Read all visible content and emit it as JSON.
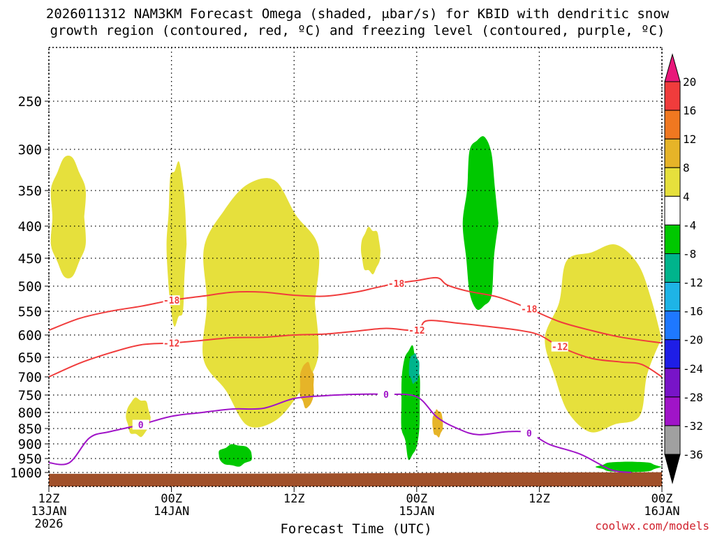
{
  "title_line1": "2026011312 NAM3KM Forecast Omega (shaded, μbar/s) for KBID with dendritic snow",
  "title_line2": "growth region (contoured, red, ºC) and freezing level (contoured, purple, ºC)",
  "credit": "coolwx.com/models",
  "chart_data": {
    "type": "time-height cross section",
    "title": "2026011312 NAM3KM Forecast Omega (shaded, μbar/s) for KBID with dendritic snow growth region (contoured, red, ºC) and freezing level (contoured, purple, ºC)",
    "xlabel": "Forecast Time (UTC)",
    "ylabel": "",
    "x_range_hours": [
      0,
      60
    ],
    "ylim_hpa": [
      1040,
      200
    ],
    "x_ticks": [
      {
        "hour": 0,
        "line1": "12Z",
        "line2": "13JAN",
        "line3": "2026"
      },
      {
        "hour": 12,
        "line1": "00Z",
        "line2": "14JAN",
        "line3": ""
      },
      {
        "hour": 24,
        "line1": "12Z",
        "line2": "",
        "line3": ""
      },
      {
        "hour": 36,
        "line1": "00Z",
        "line2": "15JAN",
        "line3": ""
      },
      {
        "hour": 48,
        "line1": "12Z",
        "line2": "",
        "line3": ""
      },
      {
        "hour": 60,
        "line1": "00Z",
        "line2": "16JAN",
        "line3": ""
      }
    ],
    "y_ticks": [
      250,
      300,
      350,
      400,
      450,
      500,
      550,
      600,
      650,
      700,
      750,
      800,
      850,
      900,
      950,
      1000
    ],
    "colorbar": {
      "labels": [
        "20",
        "16",
        "12",
        "8",
        "4",
        "-4",
        "-8",
        "-12",
        "-16",
        "-20",
        "-24",
        "-28",
        "-32",
        "-36"
      ],
      "colors": [
        "#e8187a",
        "#f03c3c",
        "#f07820",
        "#e6b428",
        "#e6e03c",
        "#ffffff",
        "#00c800",
        "#00b48c",
        "#1eb4e6",
        "#1e78ff",
        "#1e1ee6",
        "#7814c8",
        "#a014c8",
        "#a0a0a0",
        "#000000"
      ]
    },
    "omega_regions": [
      {
        "value_range": "4 to 8",
        "color": "#e6e03c",
        "hour_range": [
          0,
          3.8
        ],
        "hpa_range": [
          305,
          490
        ]
      },
      {
        "value_range": "4 to 8",
        "color": "#e6e03c",
        "hour_range": [
          7.5,
          10
        ],
        "hpa_range": [
          755,
          880
        ]
      },
      {
        "value_range": "4 to 8",
        "color": "#e6e03c",
        "hour_range": [
          11.5,
          13.5
        ],
        "hpa_range": [
          310,
          590
        ]
      },
      {
        "value_range": "4 to 8",
        "color": "#e6e03c",
        "hour_range": [
          14.5,
          27
        ],
        "hpa_range": [
          330,
          860
        ]
      },
      {
        "value_range": "4 to 8",
        "color": "#e6e03c",
        "hour_range": [
          30.5,
          32.5
        ],
        "hpa_range": [
          400,
          480
        ]
      },
      {
        "value_range": "4 to 8",
        "color": "#e6e03c",
        "hour_range": [
          48.5,
          60
        ],
        "hpa_range": [
          420,
          880
        ]
      },
      {
        "value_range": "8 to 12",
        "color": "#e6b428",
        "hour_range": [
          24.5,
          26
        ],
        "hpa_range": [
          660,
          790
        ]
      },
      {
        "value_range": "8 to 12",
        "color": "#e6b428",
        "hour_range": [
          37.5,
          38.6
        ],
        "hpa_range": [
          790,
          880
        ]
      },
      {
        "value_range": "-4 to -8",
        "color": "#00c800",
        "hour_range": [
          40.5,
          44
        ],
        "hpa_range": [
          280,
          560
        ]
      },
      {
        "value_range": "-4 to -8",
        "color": "#00c800",
        "hour_range": [
          34.4,
          36.4
        ],
        "hpa_range": [
          620,
          960
        ]
      },
      {
        "value_range": "-4 to -8",
        "color": "#00c800",
        "hour_range": [
          16.5,
          20
        ],
        "hpa_range": [
          900,
          980
        ]
      },
      {
        "value_range": "-4 to -8",
        "color": "#00c800",
        "hour_range": [
          53.5,
          60
        ],
        "hpa_range": [
          960,
          1000
        ]
      },
      {
        "value_range": "-8 to -12",
        "color": "#00b48c",
        "hour_range": [
          35.2,
          36.3
        ],
        "hpa_range": [
          640,
          720
        ]
      }
    ],
    "contours": [
      {
        "label": "-18",
        "color": "#f03c3c",
        "series": "dendritic snow growth region (ºC)",
        "x": [
          0,
          3,
          6,
          9,
          12,
          15,
          18,
          21,
          24,
          27,
          30,
          32,
          34,
          36,
          38,
          39,
          41,
          44,
          47,
          50,
          53,
          56,
          60
        ],
        "y": [
          590,
          565,
          550,
          540,
          528,
          520,
          512,
          512,
          518,
          520,
          512,
          503,
          495,
          490,
          485,
          498,
          510,
          522,
          545,
          572,
          590,
          605,
          618
        ]
      },
      {
        "label": "-12",
        "color": "#f03c3c",
        "series": "dendritic snow growth region (ºC)",
        "x": [
          0,
          3,
          6,
          9,
          12,
          15,
          18,
          21,
          24,
          27,
          30,
          33,
          36,
          37,
          40,
          43,
          46,
          48,
          50,
          53,
          56,
          58,
          60
        ],
        "y": [
          700,
          665,
          640,
          622,
          618,
          612,
          606,
          605,
          600,
          598,
          592,
          586,
          590,
          570,
          575,
          582,
          590,
          600,
          626,
          652,
          662,
          668,
          700
        ]
      },
      {
        "label": "0",
        "color": "#a014c8",
        "series": "freezing level (ºC)",
        "x": [
          0,
          2,
          4,
          6,
          9,
          12,
          15,
          18,
          21,
          24,
          27,
          30,
          33,
          36,
          38,
          40,
          42,
          45,
          47,
          49,
          52,
          55,
          57
        ],
        "y": [
          965,
          965,
          880,
          860,
          838,
          812,
          800,
          790,
          788,
          760,
          752,
          748,
          748,
          755,
          815,
          850,
          870,
          860,
          865,
          902,
          935,
          990,
          1000
        ]
      }
    ],
    "terrain": {
      "color": "#a0502a",
      "surface_hpa": [
        1005,
        1005,
        1003,
        1000,
        999
      ]
    }
  }
}
